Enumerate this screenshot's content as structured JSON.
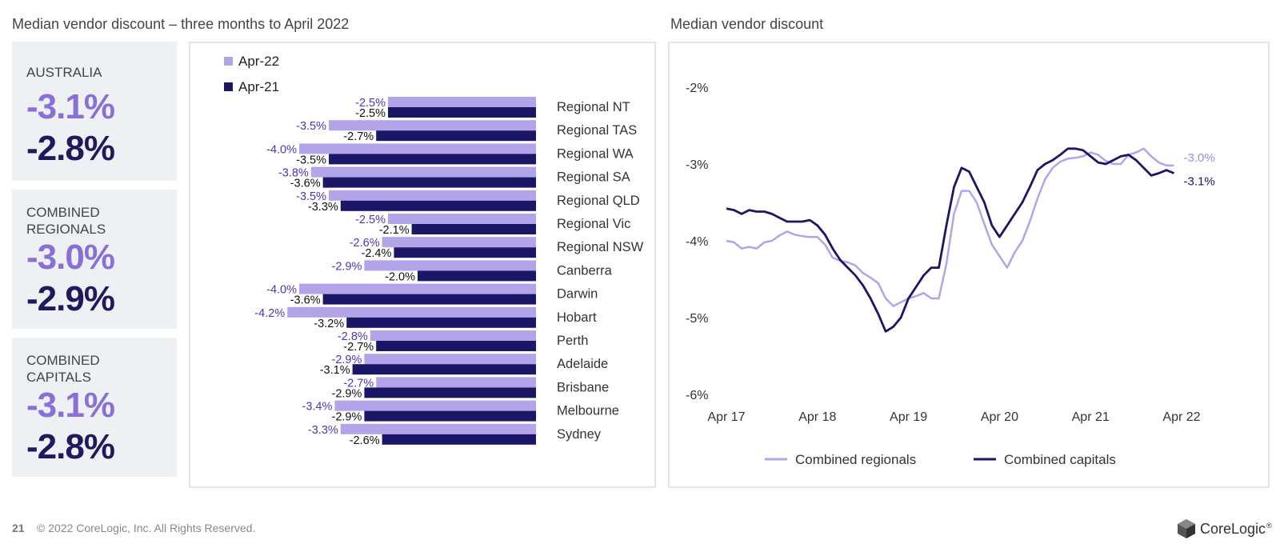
{
  "titles": {
    "left": "Median vendor discount – three months to April 2022",
    "right": "Median vendor discount"
  },
  "kpis": [
    {
      "label": "AUSTRALIA",
      "v1": "-3.1%",
      "v2": "-2.8%"
    },
    {
      "label": "COMBINED REGIONALS",
      "v1": "-3.0%",
      "v2": "-2.9%"
    },
    {
      "label": "COMBINED CAPITALS",
      "v1": "-3.1%",
      "v2": "-2.8%"
    }
  ],
  "chart_data": [
    {
      "type": "bar",
      "orientation": "horizontal",
      "categories": [
        "Regional NT",
        "Regional TAS",
        "Regional WA",
        "Regional SA",
        "Regional QLD",
        "Regional Vic",
        "Regional NSW",
        "Canberra",
        "Darwin",
        "Hobart",
        "Perth",
        "Adelaide",
        "Brisbane",
        "Melbourne",
        "Sydney"
      ],
      "series": [
        {
          "name": "Apr-22",
          "color": "#b3a4ea",
          "values": [
            -2.5,
            -3.5,
            -4.0,
            -3.8,
            -3.5,
            -2.5,
            -2.6,
            -2.9,
            -4.0,
            -4.2,
            -2.8,
            -2.9,
            -2.7,
            -3.4,
            -3.3
          ]
        },
        {
          "name": "Apr-21",
          "color": "#1b1767",
          "values": [
            -2.5,
            -2.7,
            -3.5,
            -3.6,
            -3.3,
            -2.1,
            -2.4,
            -2.0,
            -3.6,
            -3.2,
            -2.7,
            -3.1,
            -2.9,
            -2.9,
            -2.6
          ]
        }
      ],
      "data_labels": {
        "Apr-22": [
          "-2.5%",
          "-3.5%",
          "-4.0%",
          "-3.8%",
          "-3.5%",
          "-2.5%",
          "-2.6%",
          "-2.9%",
          "-4.0%",
          "-4.2%",
          "-2.8%",
          "-2.9%",
          "-2.7%",
          "-3.4%",
          "-3.3%"
        ],
        "Apr-21": [
          "-2.5%",
          "-2.7%",
          "-3.5%",
          "-3.6%",
          "-3.3%",
          "-2.1%",
          "-2.4%",
          "-2.0%",
          "-3.6%",
          "-3.2%",
          "-2.7%",
          "-3.1%",
          "-2.9%",
          "-2.9%",
          "-2.6%"
        ]
      },
      "legend": "top-left"
    },
    {
      "type": "line",
      "x_ticks": [
        "Apr 17",
        "Apr 18",
        "Apr 19",
        "Apr 20",
        "Apr 21",
        "Apr 22"
      ],
      "y_ticks": [
        "-2%",
        "-3%",
        "-4%",
        "-5%",
        "-6%"
      ],
      "y_tick_values": [
        -2,
        -3,
        -4,
        -5,
        -6
      ],
      "ylim": [
        -6,
        -2
      ],
      "x_months": 60,
      "series": [
        {
          "name": "Combined regionals",
          "color": "#b3a4ea",
          "values": [
            -4.0,
            -4.02,
            -4.1,
            -4.08,
            -4.1,
            -4.02,
            -4.0,
            -3.93,
            -3.88,
            -3.92,
            -3.94,
            -3.95,
            -3.95,
            -4.05,
            -4.22,
            -4.26,
            -4.28,
            -4.32,
            -4.42,
            -4.48,
            -4.55,
            -4.75,
            -4.85,
            -4.8,
            -4.75,
            -4.72,
            -4.68,
            -4.75,
            -4.75,
            -4.3,
            -3.65,
            -3.35,
            -3.35,
            -3.5,
            -3.78,
            -4.05,
            -4.2,
            -4.35,
            -4.15,
            -4.0,
            -3.75,
            -3.45,
            -3.2,
            -3.05,
            -2.97,
            -2.93,
            -2.92,
            -2.9,
            -2.85,
            -2.88,
            -2.96,
            -3.0,
            -3.0,
            -2.88,
            -2.85,
            -2.8,
            -2.9,
            -2.98,
            -3.02,
            -3.02
          ],
          "end_label": "-3.0%"
        },
        {
          "name": "Combined capitals",
          "color": "#1b1767",
          "values": [
            -3.58,
            -3.6,
            -3.65,
            -3.6,
            -3.62,
            -3.62,
            -3.65,
            -3.7,
            -3.75,
            -3.75,
            -3.75,
            -3.73,
            -3.8,
            -3.92,
            -4.1,
            -4.25,
            -4.35,
            -4.45,
            -4.58,
            -4.75,
            -4.95,
            -5.18,
            -5.12,
            -5.0,
            -4.75,
            -4.6,
            -4.45,
            -4.35,
            -4.35,
            -3.8,
            -3.3,
            -3.05,
            -3.1,
            -3.3,
            -3.5,
            -3.8,
            -3.95,
            -3.8,
            -3.65,
            -3.5,
            -3.3,
            -3.08,
            -3.0,
            -2.95,
            -2.88,
            -2.8,
            -2.8,
            -2.82,
            -2.9,
            -2.98,
            -3.0,
            -2.95,
            -2.9,
            -2.88,
            -2.95,
            -3.05,
            -3.15,
            -3.12,
            -3.08,
            -3.12
          ],
          "end_label": "-3.1%"
        }
      ],
      "legend": "bottom"
    }
  ],
  "footer": {
    "page": "21",
    "copyright": "© 2022 CoreLogic, Inc. All Rights Reserved.",
    "brand": "CoreLogic",
    "brand_suffix": "®"
  }
}
